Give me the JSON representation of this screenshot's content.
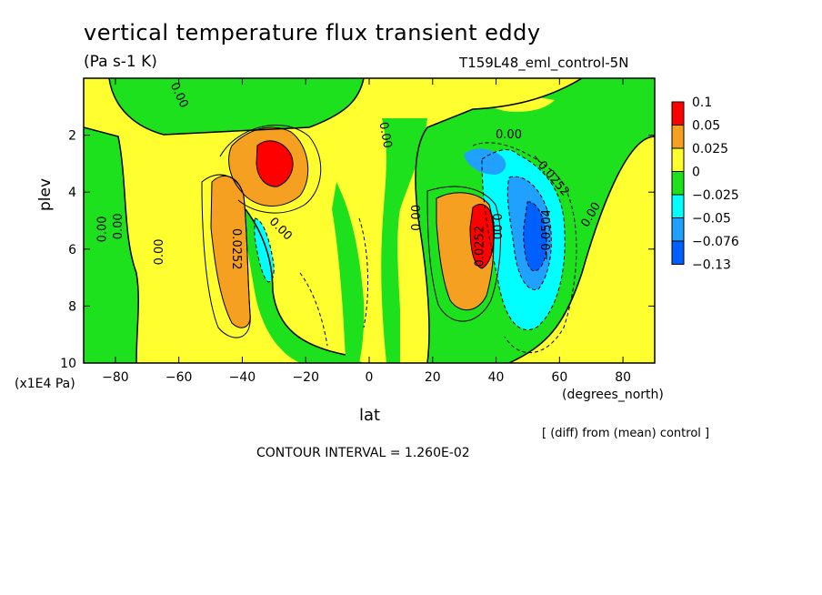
{
  "title": "vertical temperature flux transient eddy",
  "units": "(Pa s-1 K)",
  "run_label": "T159L48_eml_control-5N",
  "ylabel": "plev",
  "y_unit": "(x1E4 Pa)",
  "xlabel": "lat",
  "x_unit": "(degrees_north)",
  "diff_note": "[ (diff) from (mean) control ]",
  "contour_interval": "CONTOUR INTERVAL = 1.260E-02",
  "chart_data": {
    "type": "heatmap",
    "x_range": [
      -90,
      90
    ],
    "y_range": [
      10,
      0
    ],
    "x_ticks": [
      -80,
      -60,
      -40,
      -20,
      0,
      20,
      40,
      60,
      80
    ],
    "y_ticks": [
      2,
      4,
      6,
      8,
      10
    ],
    "colorbar": {
      "levels": [
        "0.1",
        "0.05",
        "0.025",
        "0",
        "-0.025",
        "-0.05",
        "-0.076",
        "-0.13"
      ],
      "colors": [
        "#ff0000",
        "#f5a020",
        "#ffff2f",
        "#1ee11e",
        "#00ffff",
        "#20a0ff",
        "#0060ff"
      ]
    },
    "contour_labels": [
      {
        "text": "0.00",
        "lat": -60,
        "p": 0.6,
        "rot": 65
      },
      {
        "text": "0.00",
        "lat": -84,
        "p": 5.3,
        "rot": -90
      },
      {
        "text": "0.00",
        "lat": -79,
        "p": 5.2,
        "rot": -90
      },
      {
        "text": "0.00",
        "lat": -66,
        "p": 6.1,
        "rot": -90
      },
      {
        "text": "0.0252",
        "lat": -42,
        "p": 6.0,
        "rot": 90
      },
      {
        "text": "0.00",
        "lat": -28,
        "p": 5.3,
        "rot": 45
      },
      {
        "text": "0.00",
        "lat": 5,
        "p": 2.0,
        "rot": 80
      },
      {
        "text": "0.00",
        "lat": 15,
        "p": 4.9,
        "rot": -90
      },
      {
        "text": "0.0252",
        "lat": 35,
        "p": 5.9,
        "rot": -90
      },
      {
        "text": "0.00",
        "lat": 40,
        "p": 5.2,
        "rot": 90
      },
      {
        "text": "0.00",
        "lat": 44,
        "p": 2.0,
        "rot": 0
      },
      {
        "text": "-0.0252",
        "lat": 57,
        "p": 3.4,
        "rot": 50
      },
      {
        "text": "-0.0504",
        "lat": 56,
        "p": 5.5,
        "rot": -90
      },
      {
        "text": "0.00",
        "lat": 70,
        "p": 4.8,
        "rot": -60
      }
    ],
    "positive_maxima": [
      {
        "lat": -31,
        "p": 3.0,
        "max": 0.1
      },
      {
        "lat": 36,
        "p": 6.0,
        "max": 0.1
      }
    ],
    "negative_minima": [
      {
        "lat": 52,
        "p": 5.4,
        "min": -0.13
      },
      {
        "lat": 44,
        "p": 3.0,
        "min": -0.05
      }
    ],
    "grid": false
  }
}
